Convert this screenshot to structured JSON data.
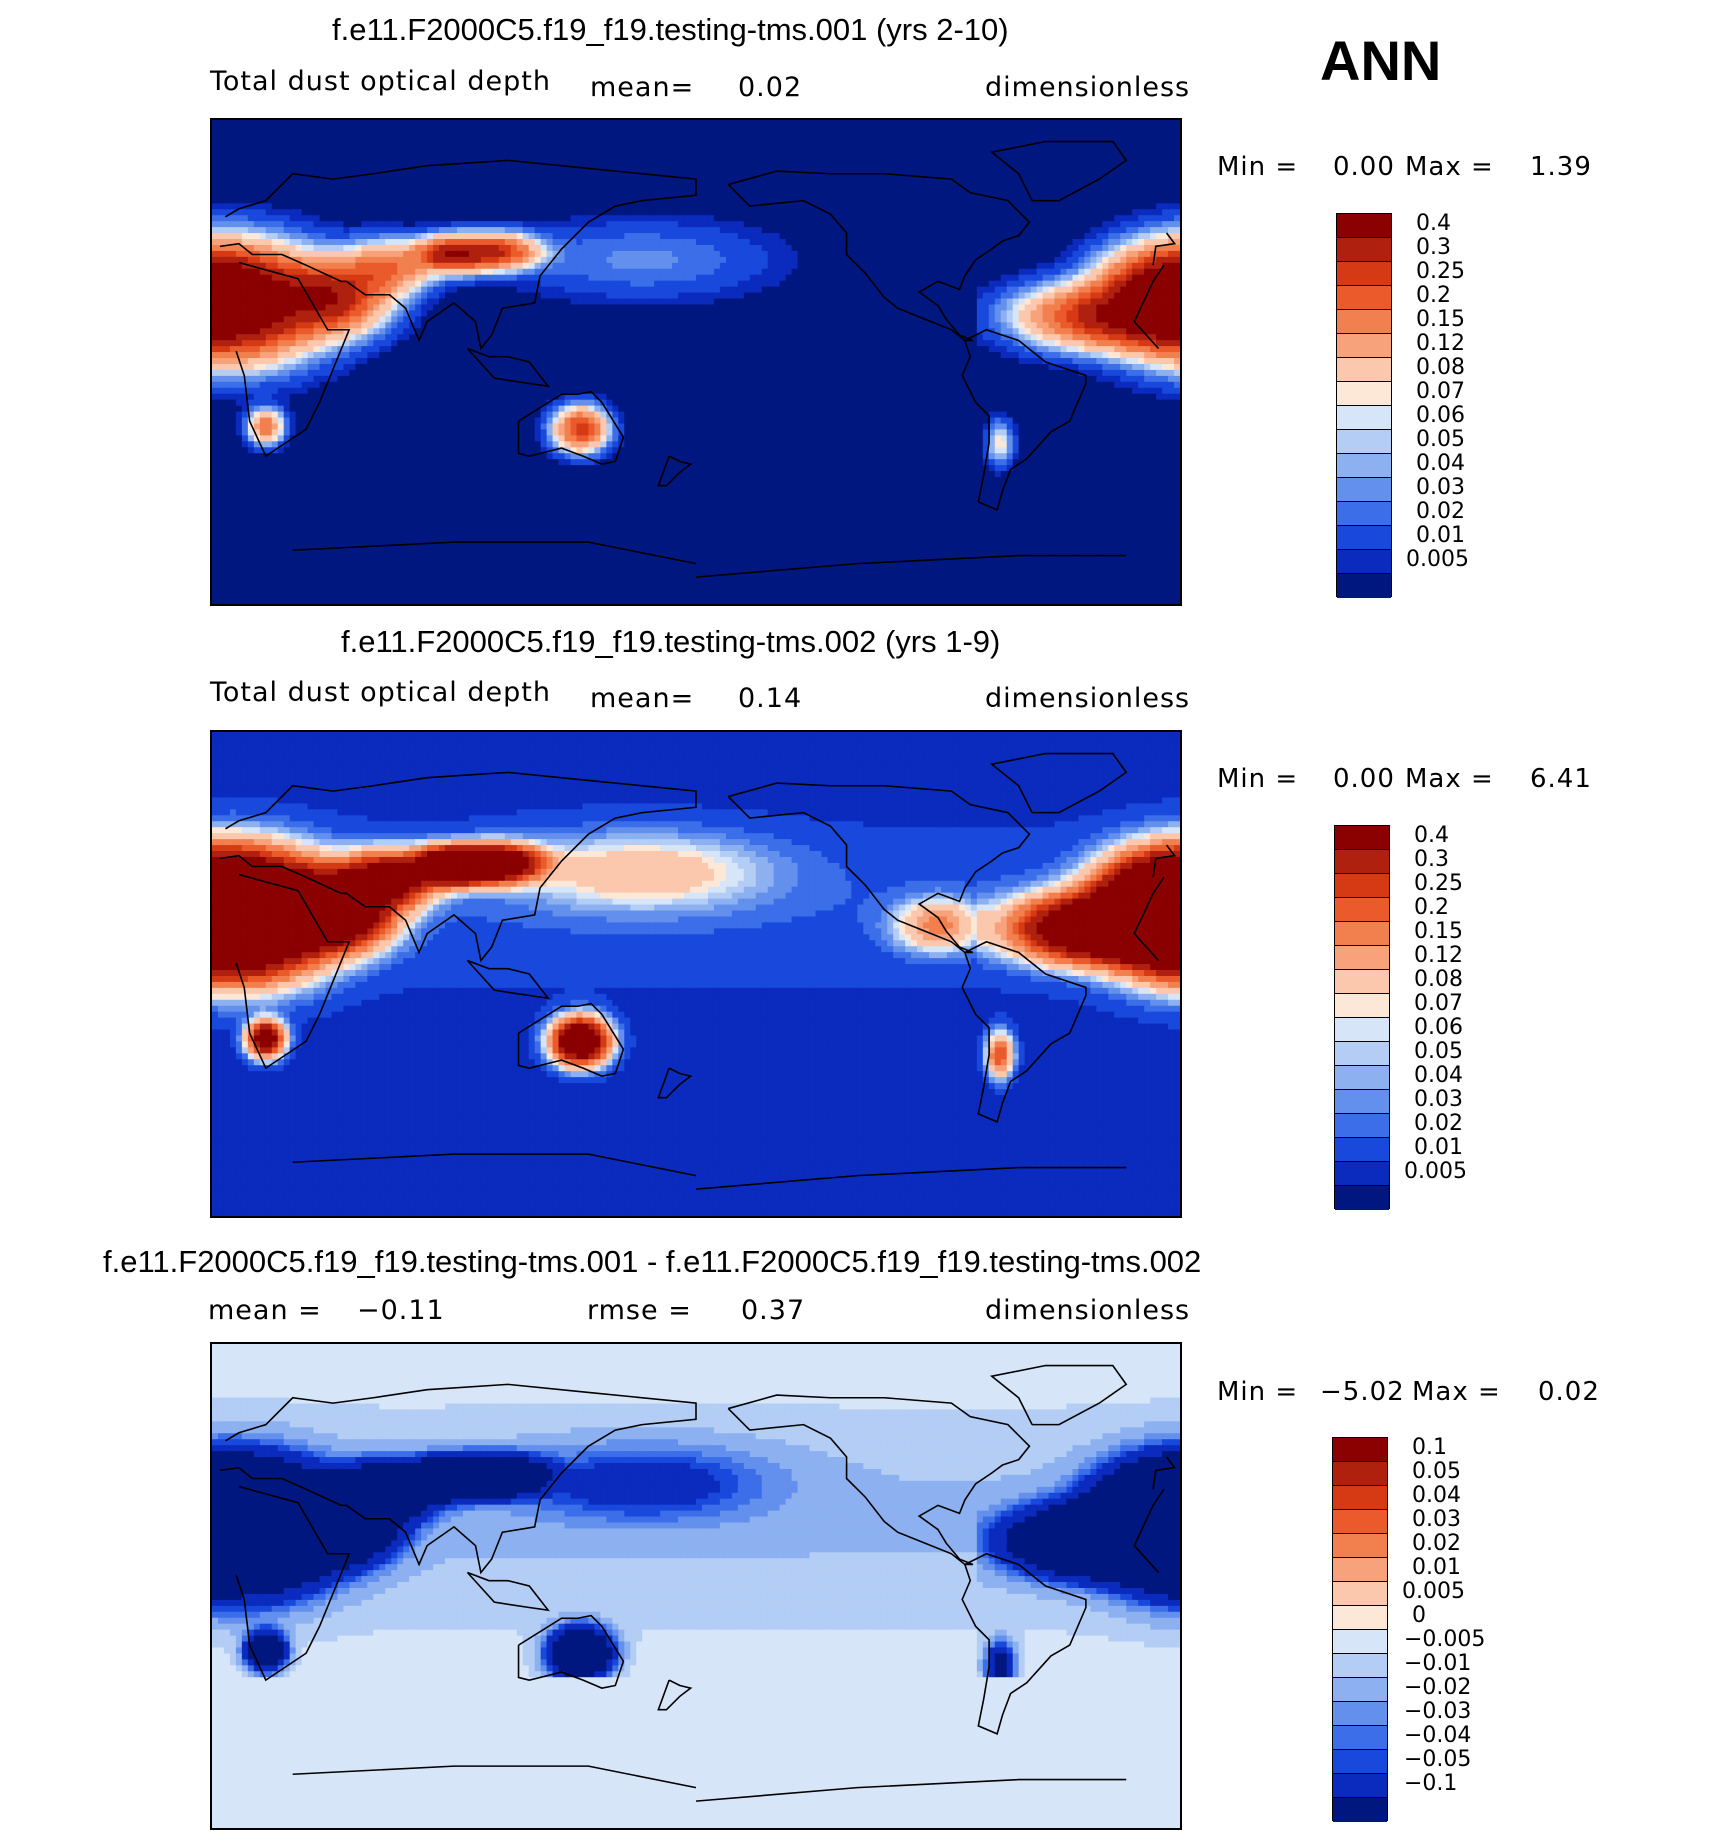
{
  "season": "ANN",
  "chart_data": [
    {
      "type": "heatmap",
      "title": "f.e11.F2000C5.f19_f19.testing-tms.001 (yrs 2-10)",
      "left_label": "Total dust optical depth",
      "mean_label": "mean=",
      "mean_value": "0.02",
      "units": "dimensionless",
      "min_label": "Min =",
      "min_value": "0.00",
      "max_label": "Max =",
      "max_value": "1.39",
      "levels": [
        "0.4",
        "0.3",
        "0.25",
        "0.2",
        "0.15",
        "0.12",
        "0.08",
        "0.07",
        "0.06",
        "0.05",
        "0.04",
        "0.03",
        "0.02",
        "0.01",
        "0.005"
      ],
      "colors": [
        "#8b0000",
        "#b0200f",
        "#d63a14",
        "#eb5a2a",
        "#f2804f",
        "#f7a27a",
        "#fbc8ad",
        "#fde8d8",
        "#d6e6f8",
        "#b3cdf5",
        "#8db1f0",
        "#6290ec",
        "#3b6ee8",
        "#1948dc",
        "#0a2bbd",
        "#001780"
      ],
      "field": "exp1"
    },
    {
      "type": "heatmap",
      "title": "f.e11.F2000C5.f19_f19.testing-tms.002 (yrs 1-9)",
      "left_label": "Total dust optical depth",
      "mean_label": "mean=",
      "mean_value": "0.14",
      "units": "dimensionless",
      "min_label": "Min =",
      "min_value": "0.00",
      "max_label": "Max =",
      "max_value": "6.41",
      "levels": [
        "0.4",
        "0.3",
        "0.25",
        "0.2",
        "0.15",
        "0.12",
        "0.08",
        "0.07",
        "0.06",
        "0.05",
        "0.04",
        "0.03",
        "0.02",
        "0.01",
        "0.005"
      ],
      "colors": [
        "#8b0000",
        "#b0200f",
        "#d63a14",
        "#eb5a2a",
        "#f2804f",
        "#f7a27a",
        "#fbc8ad",
        "#fde8d8",
        "#d6e6f8",
        "#b3cdf5",
        "#8db1f0",
        "#6290ec",
        "#3b6ee8",
        "#1948dc",
        "#0a2bbd",
        "#001780"
      ],
      "field": "exp2"
    },
    {
      "type": "heatmap",
      "title": "f.e11.F2000C5.f19_f19.testing-tms.001 - f.e11.F2000C5.f19_f19.testing-tms.002",
      "left_label": "mean =",
      "mean_label": "",
      "mean_value": "−0.11",
      "rmse_label": "rmse =",
      "rmse_value": "0.37",
      "units": "dimensionless",
      "min_label": "Min =",
      "min_value": "−5.02",
      "max_label": "Max =",
      "max_value": "0.02",
      "levels": [
        "0.1",
        "0.05",
        "0.04",
        "0.03",
        "0.02",
        "0.01",
        "0.005",
        "0",
        "−0.005",
        "−0.01",
        "−0.02",
        "−0.03",
        "−0.04",
        "−0.05",
        "−0.1"
      ],
      "colors": [
        "#8b0000",
        "#b0200f",
        "#d63a14",
        "#eb5a2a",
        "#f2804f",
        "#f7a27a",
        "#fbc8ad",
        "#fde8d8",
        "#d6e6f8",
        "#b3cdf5",
        "#8db1f0",
        "#6290ec",
        "#3b6ee8",
        "#1948dc",
        "#0a2bbd",
        "#001780"
      ],
      "field": "diff"
    }
  ]
}
